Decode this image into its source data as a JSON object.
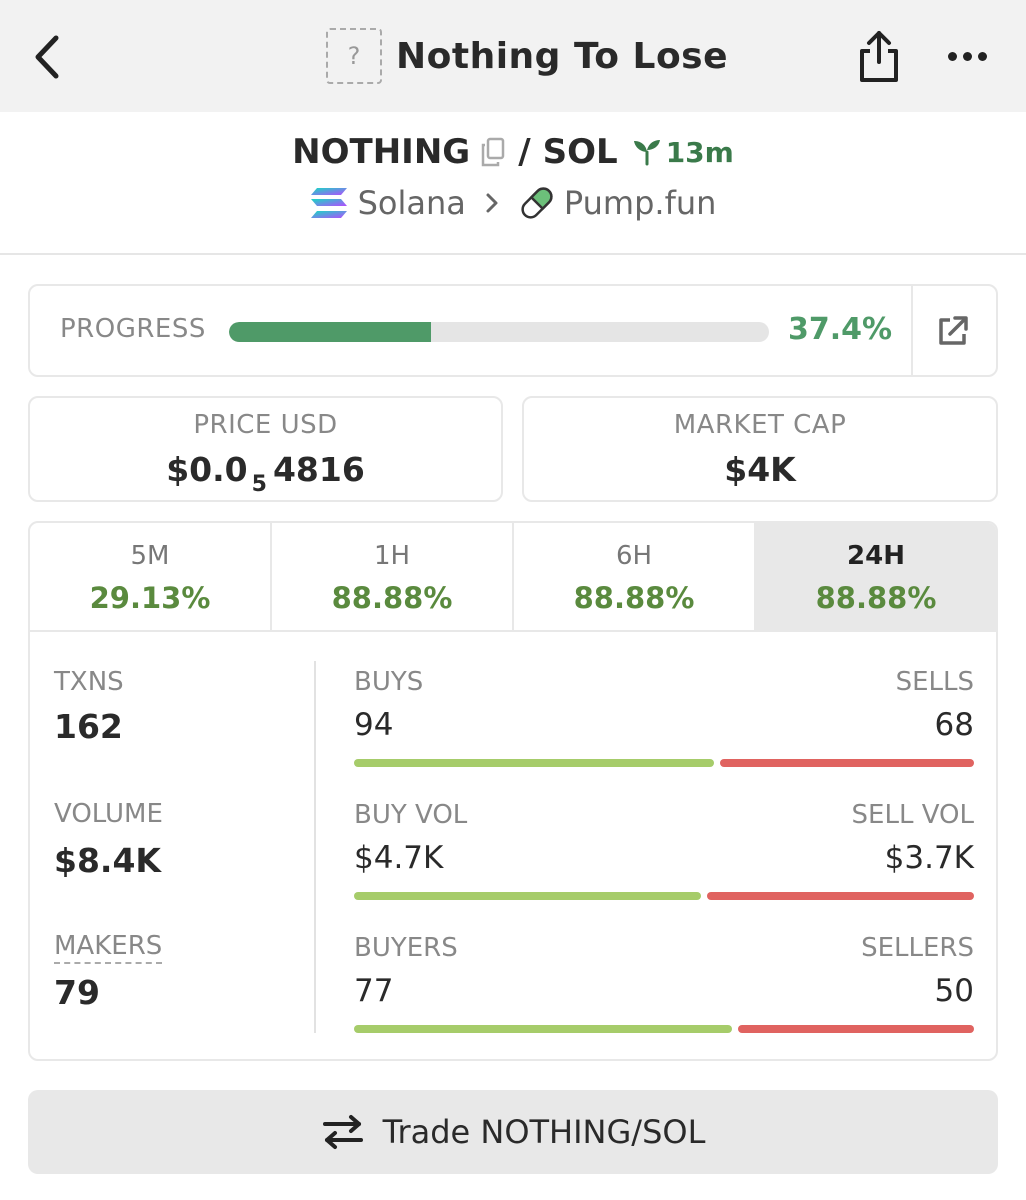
{
  "header": {
    "title": "Nothing To Lose",
    "token_image_placeholder": "?",
    "back_icon": "chevron-left-icon",
    "share_icon": "share-icon",
    "more_icon": "more-horizontal-icon"
  },
  "pair": {
    "base": "NOTHING",
    "separator": "/",
    "quote": "SOL",
    "age": "13m",
    "chain": "Solana",
    "dex": "Pump.fun"
  },
  "progress": {
    "label": "PROGRESS",
    "value_text": "37.4%",
    "fraction": 0.374
  },
  "price": {
    "label": "PRICE USD",
    "prefix": "$0.0",
    "zeros_subscript": "5",
    "digits": "4816"
  },
  "market_cap": {
    "label": "MARKET CAP",
    "value": "$4K"
  },
  "tabs": [
    {
      "label": "5M",
      "change": "29.13%",
      "active": false
    },
    {
      "label": "1H",
      "change": "88.88%",
      "active": false
    },
    {
      "label": "6H",
      "change": "88.88%",
      "active": false
    },
    {
      "label": "24H",
      "change": "88.88%",
      "active": true
    }
  ],
  "metrics": {
    "txns": {
      "label": "TXNS",
      "value": "162"
    },
    "volume": {
      "label": "VOLUME",
      "value": "$8.4K"
    },
    "makers": {
      "label": "MAKERS",
      "value": "79"
    }
  },
  "splits": {
    "txns": {
      "left_label": "BUYS",
      "left_value": "94",
      "right_label": "SELLS",
      "right_value": "68",
      "buy_fraction": 0.58
    },
    "volume": {
      "left_label": "BUY VOL",
      "left_value": "$4.7K",
      "right_label": "SELL VOL",
      "right_value": "$3.7K",
      "buy_fraction": 0.56
    },
    "makers": {
      "left_label": "BUYERS",
      "left_value": "77",
      "right_label": "SELLERS",
      "right_value": "50",
      "buy_fraction": 0.61
    }
  },
  "trade_button": {
    "label": "Trade NOTHING/SOL"
  },
  "colors": {
    "progress": "#4f9a68",
    "buy": "#a6cc6a",
    "sell": "#e06360",
    "positive": "#5a8a3e"
  }
}
